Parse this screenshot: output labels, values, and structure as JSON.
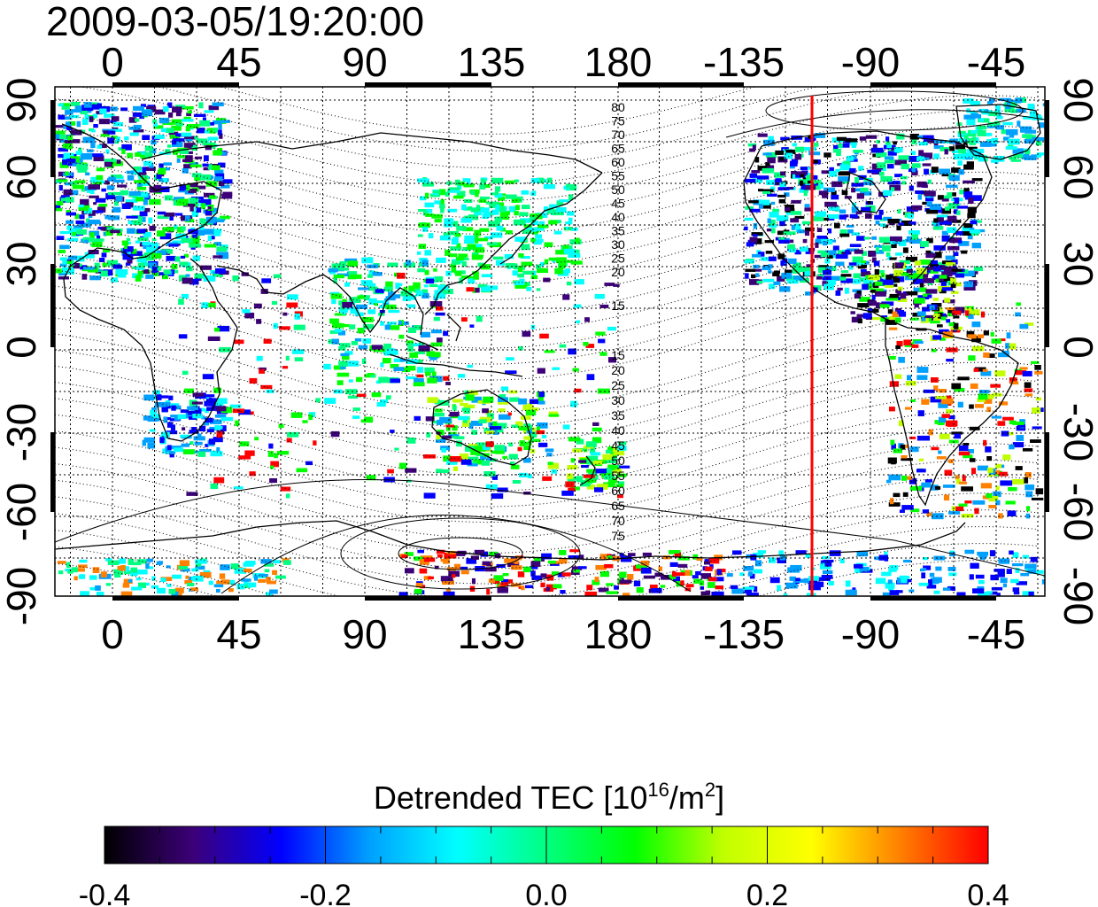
{
  "timestamp": "2009-03-05/19:20:00",
  "map": {
    "x_ticks": [
      "0",
      "45",
      "90",
      "135",
      "180",
      "-135",
      "-90",
      "-45"
    ],
    "y_ticks_left": [
      "90",
      "60",
      "30",
      "0",
      "-30",
      "-60",
      "-90"
    ],
    "y_ticks_right": [
      "90",
      "60",
      "30",
      "0",
      "-30",
      "-60",
      "-90"
    ],
    "contour_labels_north": [
      "80",
      "75",
      "70",
      "65",
      "60",
      "55",
      "50",
      "45",
      "40",
      "35",
      "30",
      "25",
      "20",
      "15"
    ],
    "contour_labels_south": [
      "15",
      "20",
      "25",
      "30",
      "35",
      "40",
      "45",
      "50",
      "55",
      "60",
      "65",
      "70",
      "75"
    ],
    "terminator_line_color": "#ff0000",
    "coastline_color": "#000000"
  },
  "colorbar": {
    "title_main": "Detrended TEC  [10",
    "title_sup": "16",
    "title_mid": "/m",
    "title_sup2": "2",
    "title_end": "]",
    "ticks": [
      "-0.4",
      "-0.2",
      "0.0",
      "0.2",
      "0.4"
    ],
    "range": [
      -0.4,
      0.4
    ],
    "colors": [
      "#000000",
      "#3c0078",
      "#0000ff",
      "#00a0ff",
      "#00ffff",
      "#00ff80",
      "#00ff00",
      "#c0ff00",
      "#ffff00",
      "#ff8000",
      "#ff0000"
    ]
  }
}
